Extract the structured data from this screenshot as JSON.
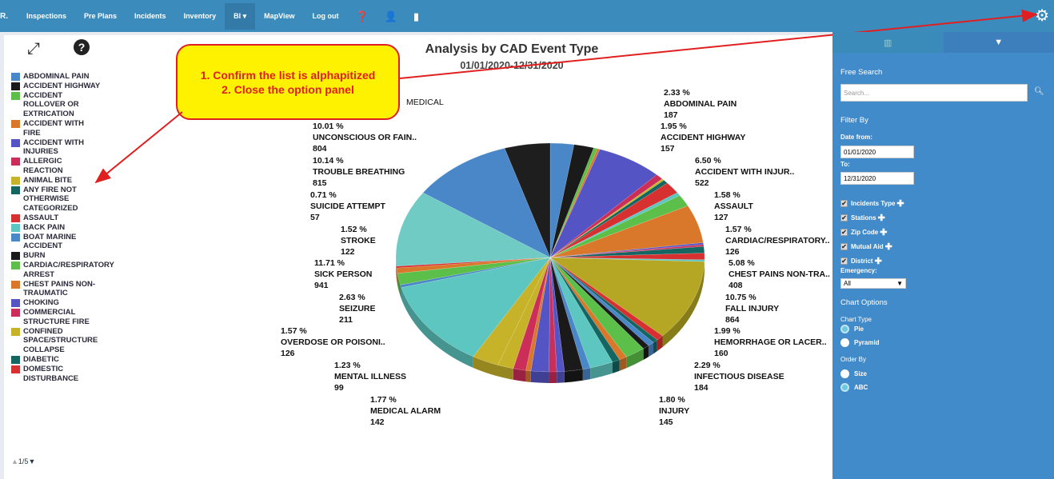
{
  "nav": {
    "brand": "R.",
    "items": [
      "Inspections",
      "Pre Plans",
      "Incidents",
      "Inventory",
      "BI",
      "MapView",
      "Log out"
    ],
    "active": "BI"
  },
  "chart_tools": {
    "expand": "expand-icon",
    "help": "help-icon"
  },
  "legend": {
    "items": [
      {
        "label": "ABDOMINAL PAIN",
        "color": "#4a87c8"
      },
      {
        "label": "ACCIDENT HIGHWAY",
        "color": "#1a1a1a"
      },
      {
        "label": "ACCIDENT ROLLOVER OR EXTRICATION",
        "color": "#5cbf4a"
      },
      {
        "label": "ACCIDENT WITH FIRE",
        "color": "#d9772b"
      },
      {
        "label": "ACCIDENT WITH INJURIES",
        "color": "#5454c4"
      },
      {
        "label": "ALLERGIC REACTION",
        "color": "#cc2e5a"
      },
      {
        "label": "ANIMAL BITE",
        "color": "#c7b32a"
      },
      {
        "label": "ANY FIRE NOT OTHERWISE CATEGORIZED",
        "color": "#146662"
      },
      {
        "label": "ASSAULT",
        "color": "#d63030"
      },
      {
        "label": "BACK PAIN",
        "color": "#5ec6c0"
      },
      {
        "label": "BOAT MARINE ACCIDENT",
        "color": "#4a87c8"
      },
      {
        "label": "BURN",
        "color": "#1a1a1a"
      },
      {
        "label": "CARDIAC/RESPIRATORY ARREST",
        "color": "#5cbf4a"
      },
      {
        "label": "CHEST PAINS NON-TRAUMATIC",
        "color": "#d9772b"
      },
      {
        "label": "CHOKING",
        "color": "#5454c4"
      },
      {
        "label": "COMMERCIAL STRUCTURE FIRE",
        "color": "#cc2e5a"
      },
      {
        "label": "CONFINED SPACE/STRUCTURE COLLAPSE",
        "color": "#c7b32a"
      },
      {
        "label": "DIABETIC",
        "color": "#146662"
      },
      {
        "label": "DOMESTIC DISTURBANCE",
        "color": "#d63030"
      }
    ],
    "page": "1/5"
  },
  "chart_data": {
    "type": "pie",
    "title": "Analysis by CAD Event Type",
    "subtitle": "01/01/2020-12/31/2020",
    "slices": [
      {
        "label": "ABDOMINAL PAIN",
        "pct": "2.33 %",
        "value": 187,
        "color": "#4a87c8"
      },
      {
        "label": "ACCIDENT HIGHWAY",
        "pct": "1.95 %",
        "value": 157,
        "color": "#1a1a1a"
      },
      {
        "value": 30,
        "color": "#5cbf4a"
      },
      {
        "value": 20,
        "color": "#d9772b"
      },
      {
        "label": "ACCIDENT WITH INJUR..",
        "pct": "6.50 %",
        "value": 522,
        "color": "#5454c4"
      },
      {
        "value": 60,
        "color": "#cc2e5a"
      },
      {
        "value": 20,
        "color": "#c7b32a"
      },
      {
        "value": 40,
        "color": "#146662"
      },
      {
        "label": "ASSAULT",
        "pct": "1.58 %",
        "value": 127,
        "color": "#d63030"
      },
      {
        "value": 35,
        "color": "#5ec6c0"
      },
      {
        "label": "CARDIAC/RESPIRATORY..",
        "pct": "1.57 %",
        "value": 126,
        "color": "#5cbf4a"
      },
      {
        "label": "CHEST PAINS NON-TRA..",
        "pct": "5.08 %",
        "value": 408,
        "color": "#d9772b"
      },
      {
        "value": 20,
        "color": "#5454c4"
      },
      {
        "value": 20,
        "color": "#cc2e5a"
      },
      {
        "value": 70,
        "color": "#146662"
      },
      {
        "value": 70,
        "color": "#d63030"
      },
      {
        "value": 20,
        "color": "#5ec6c0"
      },
      {
        "label": "FALL INJURY",
        "pct": "10.75 %",
        "value": 864,
        "color": "#b5a623"
      },
      {
        "value": 60,
        "color": "#d63030"
      },
      {
        "value": 40,
        "color": "#146662"
      },
      {
        "value": 50,
        "color": "#4a87c8"
      },
      {
        "value": 50,
        "color": "#1a1a1a"
      },
      {
        "label": "HEMORRHAGE OR LACER..",
        "pct": "1.99 %",
        "value": 160,
        "color": "#5cbf4a"
      },
      {
        "value": 60,
        "color": "#d9772b"
      },
      {
        "value": 60,
        "color": "#146662"
      },
      {
        "label": "INFECTIOUS DISEASE",
        "pct": "2.29 %",
        "value": 184,
        "color": "#5ec6c0"
      },
      {
        "value": 60,
        "color": "#4a87c8"
      },
      {
        "label": "INJURY",
        "pct": "1.80 %",
        "value": 145,
        "color": "#1a1a1a"
      },
      {
        "value": 60,
        "color": "#5454c4"
      },
      {
        "value": 60,
        "color": "#cc2e5a"
      },
      {
        "label": "MEDICAL ALARM",
        "pct": "1.77 %",
        "value": 142,
        "color": "#5454c4"
      },
      {
        "value": 40,
        "color": "#d9772b"
      },
      {
        "label": "MENTAL ILLNESS",
        "pct": "1.23 %",
        "value": 99,
        "color": "#cc2e5a"
      },
      {
        "label": "OVERDOSE OR POISONI..",
        "pct": "1.57 %",
        "value": 126,
        "color": "#c7b32a"
      },
      {
        "label": "SEIZURE",
        "pct": "2.63 %",
        "value": 211,
        "color": "#c7b32a"
      },
      {
        "label": "SICK PERSON",
        "pct": "11.71 %",
        "value": 941,
        "color": "#5ec6c0"
      },
      {
        "value": 30,
        "color": "#4a87c8"
      },
      {
        "label": "STROKE",
        "pct": "1.52 %",
        "value": 122,
        "color": "#5cbf4a"
      },
      {
        "label": "SUICIDE ATTEMPT",
        "pct": "0.71 %",
        "value": 57,
        "color": "#d9772b"
      },
      {
        "value": 20,
        "color": "#d63030"
      },
      {
        "label": "TROUBLE BREATHING",
        "pct": "10.14 %",
        "value": 815,
        "color": "#6fcbc4"
      },
      {
        "label": "UNCONSCIOUS OR FAIN..",
        "pct": "10.01 %",
        "value": 804,
        "color": "#4a87c8"
      },
      {
        "label": "MEDICAL",
        "value": 360,
        "color": "#1e1e1e"
      }
    ]
  },
  "callout": {
    "line1": "1. Confirm the list is alphapitized",
    "line2": "2. Close the option panel"
  },
  "panel": {
    "free_search": "Free Search",
    "search_placeholder": "Search...",
    "filter_by": "Filter By",
    "date_from_label": "Date from:",
    "date_from": "01/01/2020",
    "to_label": "To:",
    "date_to": "12/31/2020",
    "checks": [
      "Incidents Type",
      "Stations",
      "Zip Code",
      "Mutual Aid",
      "District"
    ],
    "emergency_label": "Emergency:",
    "emergency_value": "All",
    "chart_options": "Chart Options",
    "chart_type_label": "Chart Type",
    "chart_types": [
      "Pie",
      "Pyramid"
    ],
    "order_by_label": "Order By",
    "order_by": [
      "Size",
      "ABC"
    ]
  }
}
